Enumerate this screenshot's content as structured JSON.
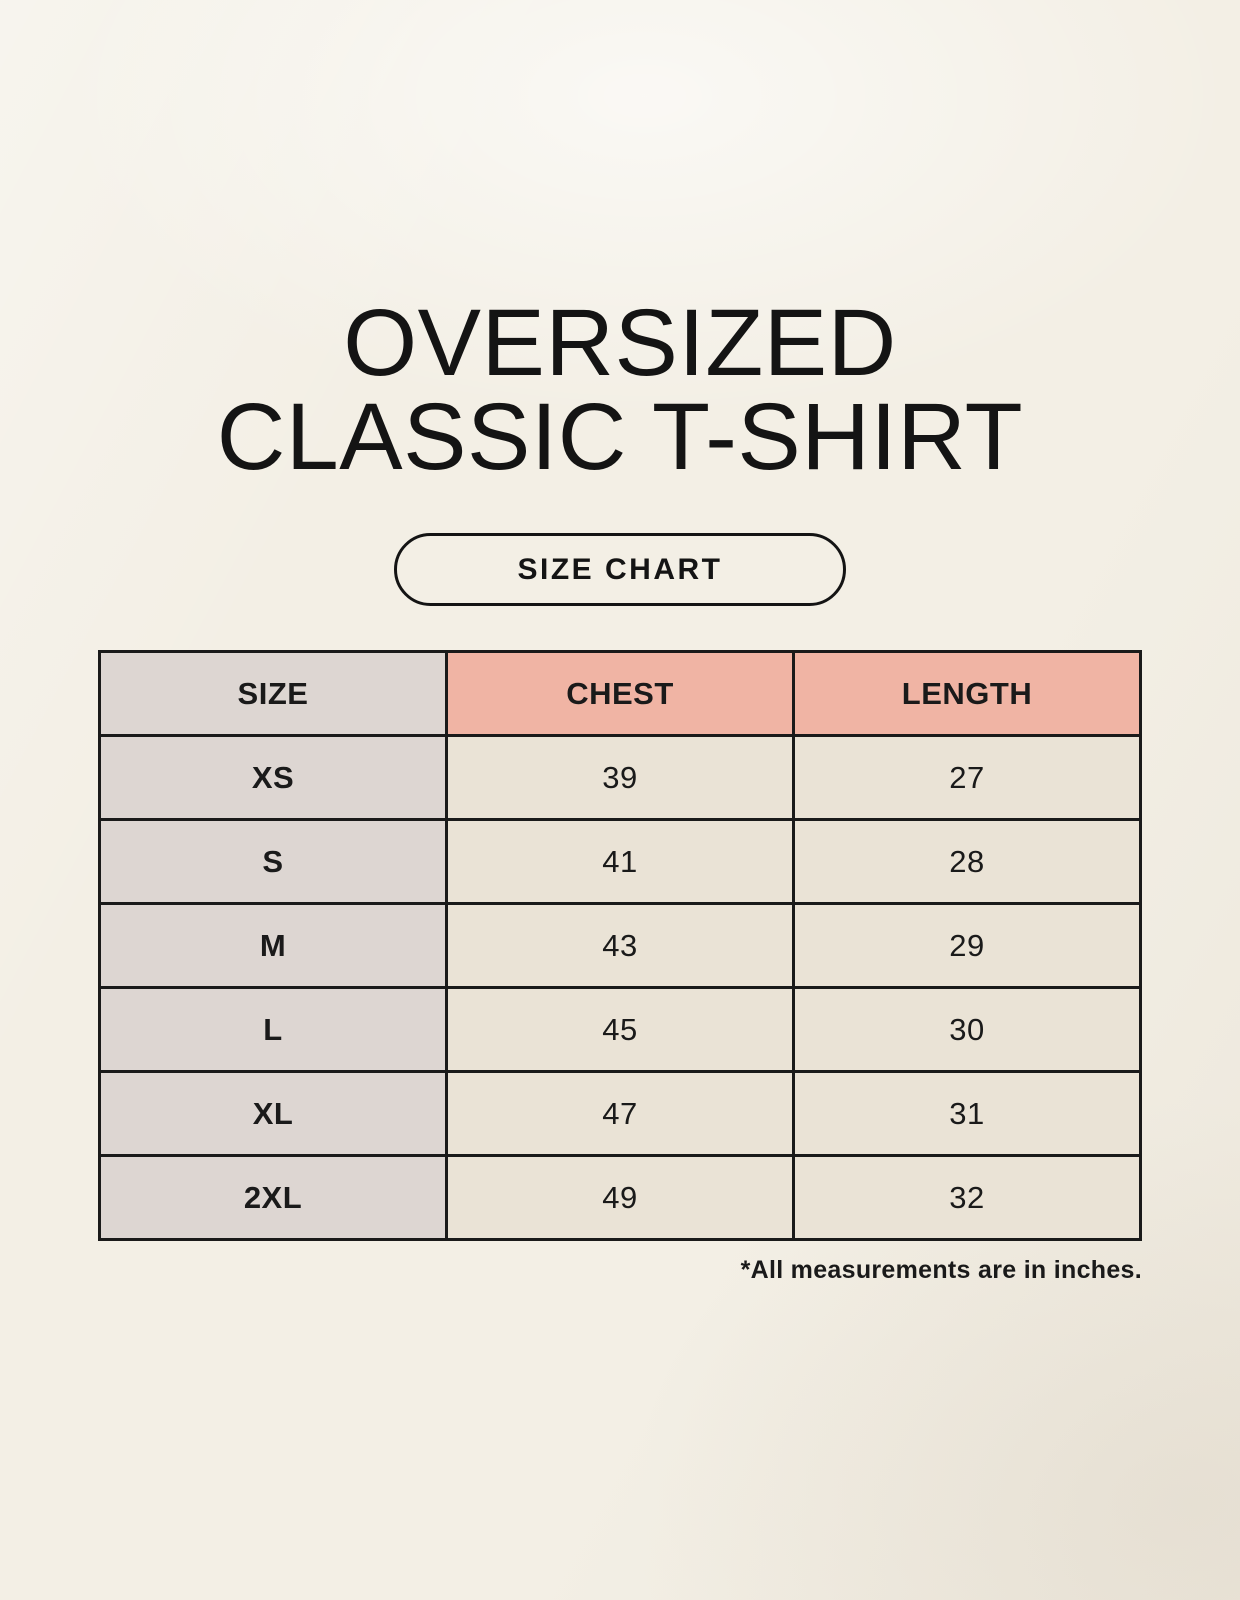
{
  "page": {
    "title_line1": "OVERSIZED",
    "title_line2": "CLASSIC T-SHIRT",
    "size_chart_button_label": "SIZE CHART",
    "footnote": "*All measurements are in inches."
  },
  "chart_data": {
    "type": "table",
    "title": "OVERSIZED CLASSIC T-SHIRT",
    "subtitle": "SIZE CHART",
    "columns": [
      "SIZE",
      "CHEST",
      "LENGTH"
    ],
    "rows": [
      [
        "XS",
        39,
        27
      ],
      [
        "S",
        41,
        28
      ],
      [
        "M",
        43,
        29
      ],
      [
        "L",
        45,
        30
      ],
      [
        "XL",
        47,
        31
      ],
      [
        "2XL",
        49,
        32
      ]
    ],
    "note": "*All measurements are in inches.",
    "units": "inches"
  },
  "colors": {
    "background": "#f3efe5",
    "header_accent_pink": "#f0b4a4",
    "size_column_gray": "#ddd6d2",
    "data_cell_beige": "#eae3d6",
    "border": "#1a1a1a",
    "text": "#141414"
  }
}
